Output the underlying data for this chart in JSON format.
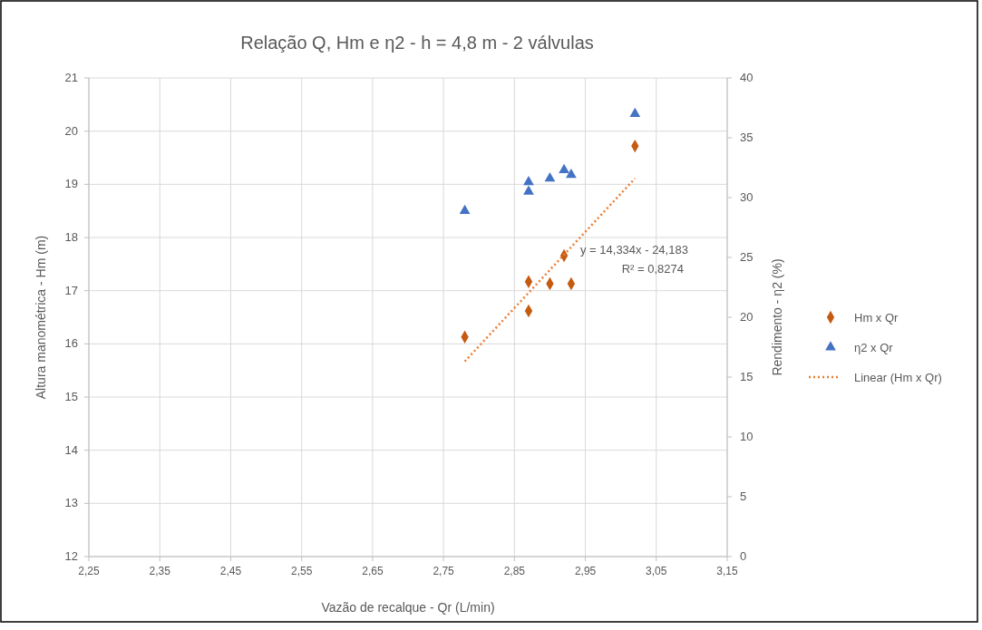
{
  "chart_data": {
    "type": "scatter",
    "title": "Relação Q, Hm e η2 - h = 4,8 m - 2 válvulas",
    "xlabel": "Vazão de recalque - Qr (L/min)",
    "ylabel": "Altura manométrica - Hm (m)",
    "y2label": "Rendimento - η2 (%)",
    "xlim": [
      2.25,
      3.15
    ],
    "xticks": [
      {
        "value": 2.25,
        "label": "2,25"
      },
      {
        "value": 2.35,
        "label": "2,35"
      },
      {
        "value": 2.45,
        "label": "2,45"
      },
      {
        "value": 2.55,
        "label": "2,55"
      },
      {
        "value": 2.65,
        "label": "2,65"
      },
      {
        "value": 2.75,
        "label": "2,75"
      },
      {
        "value": 2.85,
        "label": "2,85"
      },
      {
        "value": 2.95,
        "label": "2,95"
      },
      {
        "value": 3.05,
        "label": "3,05"
      },
      {
        "value": 3.15,
        "label": "3,15"
      }
    ],
    "ylim": [
      12,
      21
    ],
    "yticks": [
      12,
      13,
      14,
      15,
      16,
      17,
      18,
      19,
      20,
      21
    ],
    "y2lim": [
      0,
      40
    ],
    "y2ticks": [
      0,
      5,
      10,
      15,
      20,
      25,
      30,
      35,
      40
    ],
    "grid": true,
    "legend": "right",
    "x": [
      2.78,
      2.87,
      2.87,
      2.9,
      2.92,
      2.93,
      3.02
    ],
    "series": [
      {
        "name": "Hm x Qr",
        "marker": "diamond",
        "color": "#c55a11",
        "values": [
          16.13,
          17.17,
          16.62,
          17.13,
          17.66,
          17.13,
          19.72
        ]
      },
      {
        "name": "η2 x Qr",
        "marker": "triangle",
        "color": "#4472c4",
        "axis": "y2",
        "values": [
          28.9,
          31.3,
          30.5,
          31.6,
          32.3,
          31.9,
          37.0
        ]
      },
      {
        "name": "Linear (Hm x Qr)",
        "type": "line",
        "line_style": "dotted",
        "color": "#ed7d31",
        "x": [
          2.78,
          3.02
        ],
        "values": [
          15.67,
          19.11
        ]
      }
    ],
    "annotations": [
      "y = 14,334x - 24,183",
      "R² = 0,8274"
    ]
  }
}
